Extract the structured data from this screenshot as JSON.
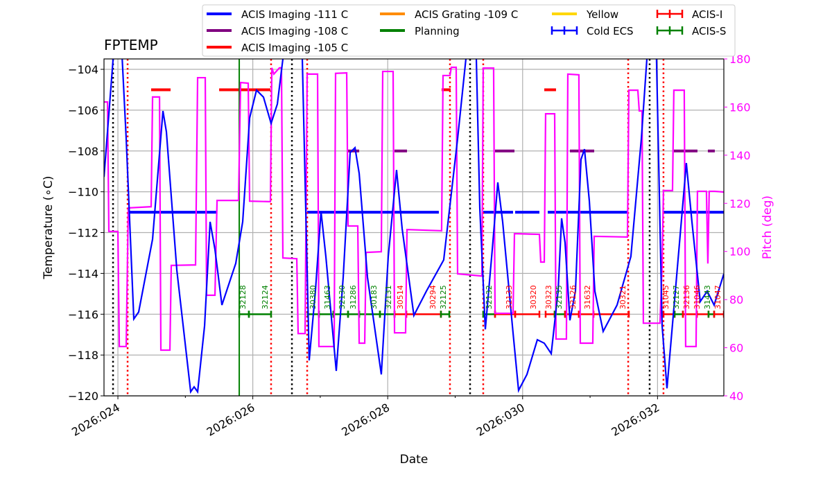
{
  "chart_data": {
    "type": "line",
    "title": "FPTEMP",
    "xlabel": "Date",
    "ylabel": "Temperature ($^\\circ$C)",
    "ylabel_display": "Temperature (∘C)",
    "y2label": "Pitch (deg)",
    "xlim": [
      23.794,
      32.983
    ],
    "ylim": [
      -120,
      -103.49
    ],
    "y2lim": [
      40,
      180
    ],
    "x_ticks": [
      {
        "day": 24,
        "label": "2026:024"
      },
      {
        "day": 26,
        "label": "2026:026"
      },
      {
        "day": 28,
        "label": "2026:028"
      },
      {
        "day": 30,
        "label": "2026:030"
      },
      {
        "day": 32,
        "label": "2026:032"
      }
    ],
    "y_ticks": [
      -104,
      -106,
      -108,
      -110,
      -112,
      -114,
      -116,
      -118,
      -120
    ],
    "y2_ticks": [
      40,
      60,
      80,
      100,
      120,
      140,
      160,
      180
    ],
    "grid": true,
    "colors": {
      "temp": "#0000ff",
      "pitch": "#ff00ff",
      "acis_i": "#ff0000",
      "acis_s": "#008000",
      "purple": "#800080",
      "orange": "#ff8c00",
      "yellow": "#ffd700"
    },
    "legend": {
      "placement": "top",
      "entries": [
        {
          "label": "ACIS Imaging -111 C",
          "color": "#0000ff",
          "kind": "line"
        },
        {
          "label": "ACIS Grating -109 C",
          "color": "#ff8c00",
          "kind": "line"
        },
        {
          "label": "Yellow",
          "color": "#ffd700",
          "kind": "line"
        },
        {
          "label": "ACIS-I",
          "color": "#ff0000",
          "kind": "errorbar"
        },
        {
          "label": "ACIS Imaging -108 C",
          "color": "#800080",
          "kind": "line"
        },
        {
          "label": "Planning",
          "color": "#008000",
          "kind": "line"
        },
        {
          "label": "Cold ECS",
          "color": "#0000ff",
          "kind": "errorbar"
        },
        {
          "label": "ACIS-S",
          "color": "#008000",
          "kind": "errorbar"
        },
        {
          "label": "ACIS Imaging -105 C",
          "color": "#ff0000",
          "kind": "line"
        }
      ]
    },
    "temperature": [
      [
        23.794,
        -109.27
      ],
      [
        23.949,
        -102.64
      ],
      [
        24.051,
        -102.64
      ],
      [
        24.123,
        -107.4
      ],
      [
        24.236,
        -116.23
      ],
      [
        24.308,
        -115.89
      ],
      [
        24.514,
        -112.32
      ],
      [
        24.668,
        -106.04
      ],
      [
        24.719,
        -107.06
      ],
      [
        24.874,
        -113.85
      ],
      [
        25.079,
        -119.8
      ],
      [
        25.13,
        -119.56
      ],
      [
        25.182,
        -119.8
      ],
      [
        25.285,
        -116.57
      ],
      [
        25.367,
        -111.47
      ],
      [
        25.439,
        -112.83
      ],
      [
        25.542,
        -115.55
      ],
      [
        25.747,
        -113.51
      ],
      [
        25.85,
        -111.47
      ],
      [
        25.953,
        -106.38
      ],
      [
        26.055,
        -105.02
      ],
      [
        26.158,
        -105.36
      ],
      [
        26.271,
        -106.65
      ],
      [
        26.364,
        -105.7
      ],
      [
        26.446,
        -103.49
      ],
      [
        26.518,
        -101.96
      ],
      [
        26.672,
        -101.96
      ],
      [
        26.734,
        -103.49
      ],
      [
        26.836,
        -118.26
      ],
      [
        26.928,
        -114.87
      ],
      [
        27.011,
        -110.96
      ],
      [
        27.083,
        -113.17
      ],
      [
        27.237,
        -118.78
      ],
      [
        27.34,
        -114.19
      ],
      [
        27.443,
        -108.08
      ],
      [
        27.515,
        -107.84
      ],
      [
        27.577,
        -109.1
      ],
      [
        27.7,
        -114.19
      ],
      [
        27.905,
        -118.95
      ],
      [
        28.008,
        -113.17
      ],
      [
        28.131,
        -108.93
      ],
      [
        28.214,
        -111.81
      ],
      [
        28.388,
        -116.06
      ],
      [
        28.573,
        -114.87
      ],
      [
        28.83,
        -113.34
      ],
      [
        29.036,
        -107.4
      ],
      [
        29.159,
        -103.49
      ],
      [
        29.221,
        -101.96
      ],
      [
        29.303,
        -101.96
      ],
      [
        29.365,
        -110.79
      ],
      [
        29.447,
        -116.74
      ],
      [
        29.55,
        -112.83
      ],
      [
        29.632,
        -109.54
      ],
      [
        29.704,
        -111.47
      ],
      [
        29.858,
        -116.91
      ],
      [
        29.94,
        -119.73
      ],
      [
        30.064,
        -118.95
      ],
      [
        30.218,
        -117.25
      ],
      [
        30.321,
        -117.42
      ],
      [
        30.424,
        -117.93
      ],
      [
        30.526,
        -114.87
      ],
      [
        30.578,
        -111.3
      ],
      [
        30.629,
        -112.49
      ],
      [
        30.701,
        -116.3
      ],
      [
        30.783,
        -114.87
      ],
      [
        30.865,
        -108.42
      ],
      [
        30.917,
        -107.91
      ],
      [
        30.989,
        -110.45
      ],
      [
        31.071,
        -114.87
      ],
      [
        31.194,
        -116.84
      ],
      [
        31.4,
        -115.55
      ],
      [
        31.605,
        -113.17
      ],
      [
        31.76,
        -107.4
      ],
      [
        31.842,
        -103.49
      ],
      [
        31.893,
        -101.96
      ],
      [
        31.975,
        -101.96
      ],
      [
        32.068,
        -116.57
      ],
      [
        32.14,
        -119.63
      ],
      [
        32.273,
        -114.53
      ],
      [
        32.427,
        -108.59
      ],
      [
        32.51,
        -111.47
      ],
      [
        32.633,
        -115.38
      ],
      [
        32.736,
        -114.87
      ],
      [
        32.839,
        -115.55
      ],
      [
        32.983,
        -114.02
      ]
    ],
    "pitch": [
      [
        23.794,
        162.1
      ],
      [
        23.846,
        162.1
      ],
      [
        23.866,
        108.3
      ],
      [
        24.0,
        108.3
      ],
      [
        24.021,
        60.5
      ],
      [
        24.123,
        60.5
      ],
      [
        24.154,
        118.1
      ],
      [
        24.493,
        118.6
      ],
      [
        24.514,
        164.2
      ],
      [
        24.617,
        164.2
      ],
      [
        24.637,
        59.0
      ],
      [
        24.771,
        59.0
      ],
      [
        24.791,
        94.2
      ],
      [
        25.151,
        94.4
      ],
      [
        25.182,
        172.2
      ],
      [
        25.295,
        172.2
      ],
      [
        25.315,
        81.8
      ],
      [
        25.439,
        81.8
      ],
      [
        25.47,
        121.2
      ],
      [
        25.788,
        121.2
      ],
      [
        25.819,
        170.2
      ],
      [
        25.932,
        169.9
      ],
      [
        25.953,
        120.9
      ],
      [
        26.261,
        120.7
      ],
      [
        26.282,
        176.3
      ],
      [
        26.312,
        173.7
      ],
      [
        26.395,
        176.3
      ],
      [
        26.425,
        176.3
      ],
      [
        26.446,
        97.3
      ],
      [
        26.652,
        97.0
      ],
      [
        26.672,
        65.9
      ],
      [
        26.775,
        65.9
      ],
      [
        26.806,
        173.7
      ],
      [
        26.96,
        173.7
      ],
      [
        26.98,
        60.5
      ],
      [
        27.206,
        60.5
      ],
      [
        27.227,
        174.0
      ],
      [
        27.392,
        174.2
      ],
      [
        27.412,
        110.6
      ],
      [
        27.556,
        110.6
      ],
      [
        27.577,
        61.9
      ],
      [
        27.659,
        61.9
      ],
      [
        27.679,
        99.6
      ],
      [
        27.905,
        99.9
      ],
      [
        27.926,
        174.8
      ],
      [
        28.08,
        174.8
      ],
      [
        28.101,
        66.2
      ],
      [
        28.265,
        66.2
      ],
      [
        28.286,
        109.1
      ],
      [
        28.799,
        108.6
      ],
      [
        28.82,
        173.1
      ],
      [
        28.923,
        173.1
      ],
      [
        28.943,
        176.5
      ],
      [
        29.015,
        176.5
      ],
      [
        29.036,
        90.7
      ],
      [
        29.396,
        89.8
      ],
      [
        29.416,
        176.2
      ],
      [
        29.57,
        176.2
      ],
      [
        29.591,
        74.3
      ],
      [
        29.858,
        74.3
      ],
      [
        29.879,
        107.4
      ],
      [
        30.249,
        107.1
      ],
      [
        30.269,
        95.6
      ],
      [
        30.321,
        95.6
      ],
      [
        30.341,
        157.2
      ],
      [
        30.475,
        157.2
      ],
      [
        30.495,
        63.6
      ],
      [
        30.649,
        63.6
      ],
      [
        30.67,
        173.7
      ],
      [
        30.834,
        173.4
      ],
      [
        30.855,
        61.9
      ],
      [
        31.04,
        61.9
      ],
      [
        31.061,
        106.3
      ],
      [
        31.554,
        106.0
      ],
      [
        31.575,
        167.0
      ],
      [
        31.708,
        167.0
      ],
      [
        31.729,
        158.4
      ],
      [
        31.77,
        158.4
      ],
      [
        31.79,
        70.2
      ],
      [
        32.037,
        70.2
      ],
      [
        32.068,
        95.0
      ],
      [
        32.088,
        125.3
      ],
      [
        32.222,
        125.3
      ],
      [
        32.242,
        167.0
      ],
      [
        32.396,
        167.0
      ],
      [
        32.417,
        60.5
      ],
      [
        32.571,
        60.5
      ],
      [
        32.592,
        125.0
      ],
      [
        32.725,
        125.0
      ],
      [
        32.746,
        95.0
      ],
      [
        32.766,
        125.0
      ],
      [
        32.849,
        125.0
      ],
      [
        32.983,
        124.7
      ]
    ],
    "limit_segments": [
      {
        "level": -111,
        "color": "#0000ff",
        "spans": [
          [
            24.154,
            25.47
          ],
          [
            26.806,
            28.758
          ],
          [
            29.416,
            29.858
          ],
          [
            29.889,
            30.249
          ],
          [
            30.372,
            31.565
          ],
          [
            32.088,
            32.983
          ]
        ]
      },
      {
        "level": -108,
        "color": "#800080",
        "spans": [
          [
            27.392,
            27.577
          ],
          [
            28.101,
            28.286
          ],
          [
            29.591,
            29.879
          ],
          [
            30.701,
            31.061
          ],
          [
            32.242,
            32.592
          ],
          [
            32.746,
            32.849
          ]
        ]
      },
      {
        "level": -105,
        "color": "#ff0000",
        "spans": [
          [
            24.493,
            24.781
          ],
          [
            25.501,
            26.261
          ],
          [
            28.799,
            28.933
          ],
          [
            30.321,
            30.495
          ]
        ]
      }
    ],
    "planning_lines": [
      25.799
    ],
    "red_dotted_lines": [
      24.144,
      26.271,
      26.806,
      28.923,
      29.416,
      31.565,
      32.088
    ],
    "black_dotted_lines": [
      23.928,
      26.58,
      29.221,
      31.883
    ],
    "obsid_level": -116,
    "obsids": [
      {
        "id": "32128",
        "inst": "ACIS-S",
        "start": 25.799,
        "end": 25.942
      },
      {
        "id": "32124",
        "inst": "ACIS-S",
        "start": 25.942,
        "end": 26.271
      },
      {
        "id": "30380",
        "inst": "ACIS-S",
        "start": 26.816,
        "end": 26.98
      },
      {
        "id": "31463",
        "inst": "ACIS-S",
        "start": 26.98,
        "end": 27.196
      },
      {
        "id": "32130",
        "inst": "ACIS-S",
        "start": 27.196,
        "end": 27.412
      },
      {
        "id": "31286",
        "inst": "ACIS-S",
        "start": 27.412,
        "end": 27.577
      },
      {
        "id": "30183",
        "inst": "ACIS-S",
        "start": 27.577,
        "end": 27.885
      },
      {
        "id": "32131",
        "inst": "ACIS-S",
        "start": 27.885,
        "end": 28.101
      },
      {
        "id": "30514",
        "inst": "ACIS-I",
        "start": 28.101,
        "end": 28.275
      },
      {
        "id": "30294",
        "inst": "ACIS-I",
        "start": 28.275,
        "end": 28.789
      },
      {
        "id": "32125",
        "inst": "ACIS-S",
        "start": 28.789,
        "end": 28.913
      },
      {
        "id": "32132",
        "inst": "ACIS-S",
        "start": 29.416,
        "end": 29.591
      },
      {
        "id": "32133",
        "inst": "ACIS-I",
        "start": 29.591,
        "end": 29.889
      },
      {
        "id": "30320",
        "inst": "ACIS-I",
        "start": 29.889,
        "end": 30.249
      },
      {
        "id": "30323",
        "inst": "ACIS-I",
        "start": 30.341,
        "end": 30.475
      },
      {
        "id": "32135",
        "inst": "ACIS-S",
        "start": 30.475,
        "end": 30.629
      },
      {
        "id": "32126",
        "inst": "ACIS-I",
        "start": 30.629,
        "end": 30.834
      },
      {
        "id": "31632",
        "inst": "ACIS-I",
        "start": 30.834,
        "end": 31.05
      },
      {
        "id": "30321",
        "inst": "ACIS-I",
        "start": 31.05,
        "end": 31.575
      },
      {
        "id": "31045",
        "inst": "ACIS-I",
        "start": 32.088,
        "end": 32.253
      },
      {
        "id": "32127",
        "inst": "ACIS-S",
        "start": 32.253,
        "end": 32.376
      },
      {
        "id": "32136",
        "inst": "ACIS-I",
        "start": 32.376,
        "end": 32.582
      },
      {
        "id": "31046",
        "inst": "ACIS-I",
        "start": 32.582,
        "end": 32.756
      },
      {
        "id": "31443",
        "inst": "ACIS-S",
        "start": 32.756,
        "end": 32.839
      },
      {
        "id": "31047",
        "inst": "ACIS-I",
        "start": 32.839,
        "end": 32.983
      }
    ]
  }
}
